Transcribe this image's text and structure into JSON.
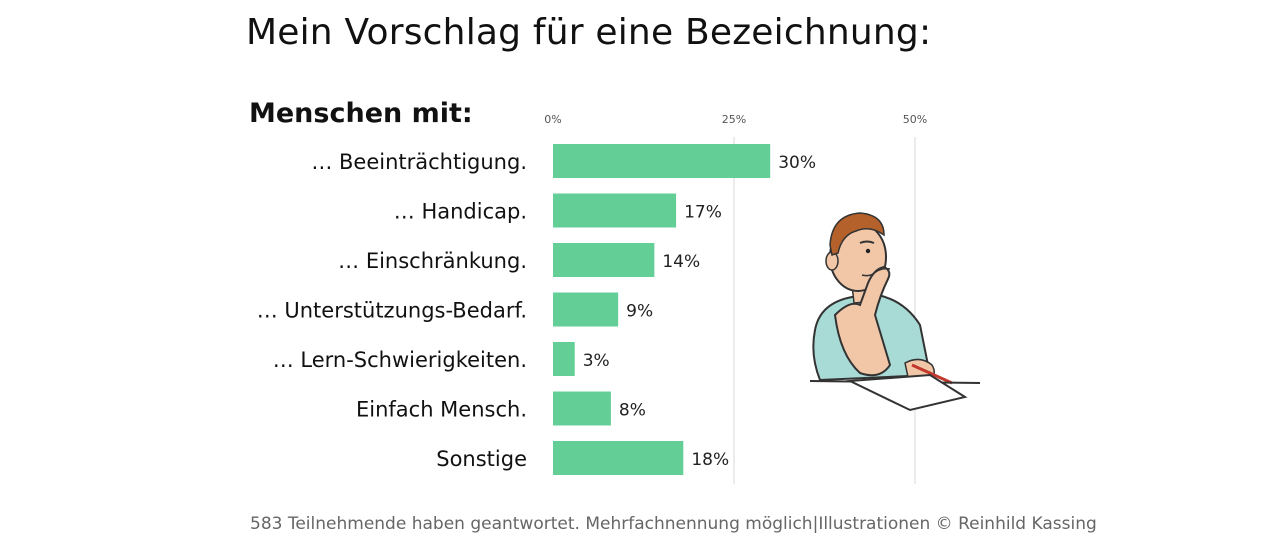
{
  "title": "Mein Vorschlag für eine Bezeichnung:",
  "subtitle": "Menschen mit:",
  "footer": "583 Teilnehmende haben geantwortet. Mehrfachnennung möglich|Illustrationen © Reinhild Kassing",
  "colors": {
    "bar": "#63cf96",
    "grid": "#d9d9d9"
  },
  "illustration": {
    "name": "thinking-person-illustration"
  },
  "chart_data": {
    "type": "bar",
    "orientation": "horizontal",
    "categories": [
      "… Beeinträchtigung.",
      "… Handicap.",
      "… Einschränkung.",
      "… Unterstützungs-Bedarf.",
      "… Lern-Schwierigkeiten.",
      "Einfach Mensch.",
      "Sonstige"
    ],
    "values": [
      30,
      17,
      14,
      9,
      3,
      8,
      18
    ],
    "value_labels": [
      "30%",
      "17%",
      "14%",
      "9%",
      "3%",
      "8%",
      "18%"
    ],
    "xticks": [
      0,
      25,
      50
    ],
    "xtick_labels": [
      "0%",
      "25%",
      "50%"
    ],
    "xlim": [
      0,
      50
    ],
    "grid": true,
    "tick_position": "top"
  }
}
